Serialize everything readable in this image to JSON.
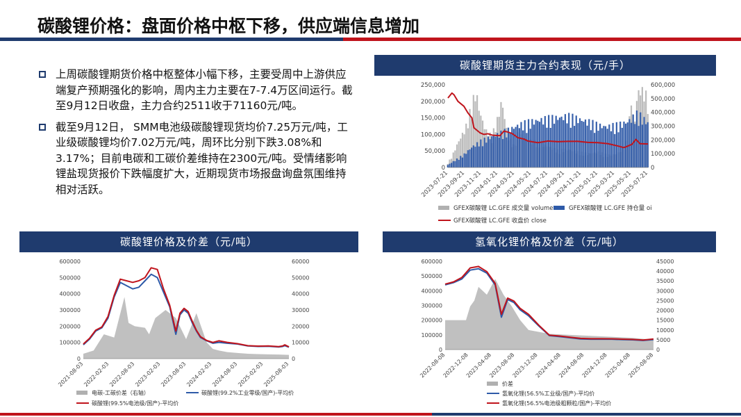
{
  "header": {
    "title": "碳酸锂价格：盘面价格中枢下移，供应端信息增加"
  },
  "bullets": [
    "上周碳酸锂期货价格中枢整体小幅下移，主要受周中上游供应端复产预期强化的影响，周内主力主要在7-7.4万区间运行。截至9月12日收盘，主力合约2511收于71160元/吨。",
    "截至9月12日， SMM电池级碳酸锂现货均价7.25万元/吨，工业级碳酸锂均价7.02万元/吨，周环比分别下跌3.08%和3.17%；目前电碳和工碳价差维持在2300元/吨。受情绪影响锂盐现货报价下跌幅度扩大，近期现货市场报盘询盘氛围维持相对活跃。"
  ],
  "captions": {
    "futures": "碳酸锂期货主力合约表现（元/手）",
    "carbonate": "碳酸锂价格及价差（元/吨）",
    "hydroxide": "氢氧化锂价格及价差（元/吨）"
  },
  "chart_data": [
    {
      "id": "futures",
      "type": "bar",
      "colors": {
        "volume": "#b0b0b0",
        "oi": "#2e5aa8",
        "close": "#c0141c"
      },
      "y_left_ticks": [
        "250,000",
        "200,000",
        "150,000",
        "100,000",
        "50,000",
        "0"
      ],
      "y_right_ticks": [
        "600,000",
        "500,000",
        "400,000",
        "300,000",
        "200,000",
        "100,000",
        "0"
      ],
      "ylim_left": [
        0,
        250000
      ],
      "ylim_right": [
        0,
        600000
      ],
      "x_ticks": [
        "2023-07-21",
        "2023-09-21",
        "2023-11-21",
        "2024-01-21",
        "2024-03-21",
        "2024-05-21",
        "2024-07-21",
        "2024-09-21",
        "2024-11-21",
        "2025-01-21",
        "2025-03-21",
        "2025-05-21",
        "2025-07-21"
      ],
      "legend": [
        "GFEX碳酸锂 LC.GFE 成交量 volume",
        "GFEX碳酸锂 LC.GFE 持仓量 oi",
        "GFEX碳酸锂 LC.GFE 收盘价 close"
      ],
      "series": [
        {
          "name": "GFEX碳酸锂 LC.GFE 成交量 volume",
          "axis": "left",
          "t": [
            0,
            0.02,
            0.05,
            0.09,
            0.12,
            0.14,
            0.16,
            0.19,
            0.22,
            0.25,
            0.27,
            0.3,
            0.33,
            0.35,
            0.4,
            0.45,
            0.5,
            0.55,
            0.6,
            0.65,
            0.7,
            0.75,
            0.8,
            0.85,
            0.9,
            0.92,
            0.93,
            0.95,
            0.96,
            0.98,
            1
          ],
          "values": [
            15000,
            35000,
            80000,
            130000,
            200000,
            250000,
            180000,
            120000,
            100000,
            160000,
            220000,
            100000,
            70000,
            110000,
            90000,
            80000,
            70000,
            55000,
            60000,
            50000,
            45000,
            50000,
            40000,
            45000,
            90000,
            250000,
            120000,
            250000,
            250000,
            250000,
            220000
          ]
        },
        {
          "name": "GFEX碳酸锂 LC.GFE 持仓量 oi",
          "axis": "right",
          "t": [
            0,
            0.04,
            0.08,
            0.12,
            0.16,
            0.2,
            0.25,
            0.3,
            0.35,
            0.4,
            0.45,
            0.5,
            0.55,
            0.6,
            0.65,
            0.7,
            0.75,
            0.8,
            0.85,
            0.9,
            0.95,
            1
          ],
          "values": [
            20000,
            60000,
            100000,
            160000,
            200000,
            230000,
            260000,
            290000,
            330000,
            350000,
            370000,
            380000,
            390000,
            400000,
            380000,
            360000,
            330000,
            320000,
            330000,
            360000,
            420000,
            350000
          ]
        },
        {
          "name": "GFEX碳酸锂 LC.GFE 收盘价 close",
          "axis": "left",
          "t": [
            0,
            0.02,
            0.03,
            0.05,
            0.08,
            0.1,
            0.12,
            0.13,
            0.14,
            0.16,
            0.18,
            0.2,
            0.22,
            0.24,
            0.26,
            0.28,
            0.3,
            0.32,
            0.35,
            0.38,
            0.4,
            0.45,
            0.5,
            0.55,
            0.6,
            0.65,
            0.7,
            0.75,
            0.8,
            0.85,
            0.88,
            0.9,
            0.92,
            0.94,
            0.96,
            1
          ],
          "values": [
            210000,
            225000,
            220000,
            200000,
            185000,
            165000,
            150000,
            120000,
            115000,
            105000,
            100000,
            102000,
            98000,
            97000,
            96000,
            110000,
            107000,
            103000,
            90000,
            86000,
            80000,
            75000,
            80000,
            78000,
            79000,
            79000,
            76000,
            75000,
            72000,
            65000,
            60000,
            65000,
            70000,
            85000,
            72000,
            71160
          ]
        }
      ]
    },
    {
      "id": "carbonate",
      "type": "line",
      "colors": {
        "spread": "#b0b0b0",
        "industrial": "#2e5aa8",
        "battery": "#c0141c"
      },
      "y_left_ticks": [
        "600000",
        "500000",
        "400000",
        "300000",
        "200000",
        "100000",
        "0"
      ],
      "y_right_ticks": [
        "60000",
        "50000",
        "40000",
        "30000",
        "20000",
        "10000",
        "0"
      ],
      "ylim_left": [
        0,
        600000
      ],
      "ylim_right": [
        0,
        60000
      ],
      "x_ticks": [
        "2021-08-03",
        "2022-02-03",
        "2022-08-03",
        "2023-02-03",
        "2023-08-03",
        "2024-02-03",
        "2024-08-03",
        "2025-02-03",
        "2025-08-03"
      ],
      "legend": [
        "电碳-工碳价差（右轴）",
        "碳酸锂(99.2%工业零级/国产)-平均价",
        "碳酸锂(99.5%电池级/国产)-平均价"
      ],
      "series": [
        {
          "name": "电碳-工碳价差（右轴）",
          "axis": "right",
          "t": [
            0,
            0.05,
            0.1,
            0.15,
            0.2,
            0.22,
            0.25,
            0.3,
            0.32,
            0.35,
            0.4,
            0.45,
            0.5,
            0.55,
            0.6,
            0.63,
            0.66,
            0.7,
            0.75,
            0.8,
            0.85,
            0.9,
            0.95,
            1
          ],
          "values": [
            3000,
            5000,
            15000,
            13000,
            38000,
            22000,
            20000,
            19000,
            15000,
            25000,
            30000,
            25000,
            12000,
            28000,
            10000,
            6000,
            5000,
            4000,
            3500,
            3000,
            2800,
            2600,
            2500,
            2300
          ]
        },
        {
          "name": "碳酸锂(99.2%工业零级/国产)-平均价",
          "axis": "left",
          "t": [
            0,
            0.03,
            0.06,
            0.09,
            0.12,
            0.15,
            0.18,
            0.21,
            0.24,
            0.27,
            0.3,
            0.33,
            0.36,
            0.39,
            0.42,
            0.45,
            0.47,
            0.49,
            0.51,
            0.53,
            0.55,
            0.57,
            0.6,
            0.63,
            0.66,
            0.7,
            0.75,
            0.8,
            0.85,
            0.9,
            0.95,
            0.97,
            0.98,
            1
          ],
          "values": [
            85000,
            120000,
            170000,
            190000,
            250000,
            380000,
            470000,
            450000,
            430000,
            440000,
            480000,
            520000,
            500000,
            410000,
            320000,
            150000,
            270000,
            300000,
            280000,
            220000,
            170000,
            130000,
            110000,
            95000,
            100000,
            95000,
            90000,
            78000,
            75000,
            76000,
            72000,
            75000,
            80000,
            70200
          ]
        },
        {
          "name": "碳酸锂(99.5%电池级/国产)-平均价",
          "axis": "left",
          "t": [
            0,
            0.03,
            0.06,
            0.09,
            0.12,
            0.15,
            0.18,
            0.21,
            0.24,
            0.27,
            0.3,
            0.33,
            0.36,
            0.39,
            0.42,
            0.45,
            0.47,
            0.49,
            0.51,
            0.53,
            0.55,
            0.57,
            0.6,
            0.63,
            0.66,
            0.7,
            0.75,
            0.8,
            0.85,
            0.9,
            0.95,
            0.97,
            0.98,
            1
          ],
          "values": [
            90000,
            125000,
            175000,
            195000,
            260000,
            390000,
            490000,
            480000,
            470000,
            480000,
            500000,
            560000,
            550000,
            430000,
            330000,
            170000,
            280000,
            310000,
            290000,
            230000,
            175000,
            135000,
            112000,
            100000,
            110000,
            100000,
            92000,
            80000,
            77000,
            78000,
            74000,
            78000,
            85000,
            72500
          ]
        }
      ]
    },
    {
      "id": "hydroxide",
      "type": "line",
      "colors": {
        "spread": "#b0b0b0",
        "industrial": "#2e5aa8",
        "battery": "#c0141c"
      },
      "y_left_ticks": [
        "600000",
        "500000",
        "400000",
        "300000",
        "200000",
        "100000",
        "0"
      ],
      "y_right_ticks": [
        "45000",
        "40000",
        "35000",
        "30000",
        "25000",
        "20000",
        "15000",
        "10000",
        "5000",
        "0"
      ],
      "ylim_left": [
        0,
        600000
      ],
      "ylim_right": [
        0,
        45000
      ],
      "x_ticks": [
        "2022-08-08",
        "2022-12-08",
        "2023-04-08",
        "2023-08-08",
        "2023-12-08",
        "2024-04-08",
        "2024-08-08",
        "2024-12-08",
        "2025-04-08",
        "2025-08-08"
      ],
      "legend": [
        "价差",
        "氢氧化锂(56.5%工业级/国产)-平均价",
        "氢氧化锂(56.5%电池级粗颗粒/国产)-平均价"
      ],
      "series": [
        {
          "name": "价差",
          "axis": "right",
          "t": [
            0,
            0.1,
            0.12,
            0.14,
            0.16,
            0.18,
            0.2,
            0.24,
            0.28,
            0.32,
            0.36,
            0.4,
            0.5,
            0.6,
            0.7,
            0.8,
            0.9,
            0.95,
            1
          ],
          "values": [
            15000,
            15000,
            22000,
            25000,
            32000,
            30000,
            28000,
            36000,
            28000,
            22000,
            15000,
            10000,
            8000,
            7500,
            7000,
            6500,
            6000,
            5500,
            5000
          ]
        },
        {
          "name": "氢氧化锂(56.5%工业级/国产)-平均价",
          "axis": "left",
          "t": [
            0,
            0.04,
            0.08,
            0.12,
            0.16,
            0.2,
            0.24,
            0.27,
            0.3,
            0.33,
            0.36,
            0.4,
            0.45,
            0.5,
            0.55,
            0.6,
            0.65,
            0.7,
            0.75,
            0.8,
            0.85,
            0.9,
            0.95,
            1
          ],
          "values": [
            440000,
            455000,
            480000,
            540000,
            550000,
            520000,
            440000,
            220000,
            340000,
            320000,
            270000,
            230000,
            160000,
            95000,
            88000,
            80000,
            72000,
            70000,
            70000,
            70000,
            68000,
            66000,
            62000,
            68000
          ]
        },
        {
          "name": "氢氧化锂(56.5%电池级粗颗粒/国产)-平均价",
          "axis": "left",
          "t": [
            0,
            0.04,
            0.08,
            0.12,
            0.16,
            0.2,
            0.24,
            0.27,
            0.3,
            0.33,
            0.36,
            0.4,
            0.45,
            0.5,
            0.55,
            0.6,
            0.65,
            0.7,
            0.75,
            0.8,
            0.85,
            0.9,
            0.95,
            1
          ],
          "values": [
            445000,
            460000,
            490000,
            555000,
            565000,
            530000,
            450000,
            240000,
            350000,
            330000,
            280000,
            240000,
            165000,
            98000,
            92000,
            84000,
            76000,
            74000,
            74000,
            73000,
            71000,
            69000,
            65000,
            72000
          ]
        }
      ]
    }
  ]
}
